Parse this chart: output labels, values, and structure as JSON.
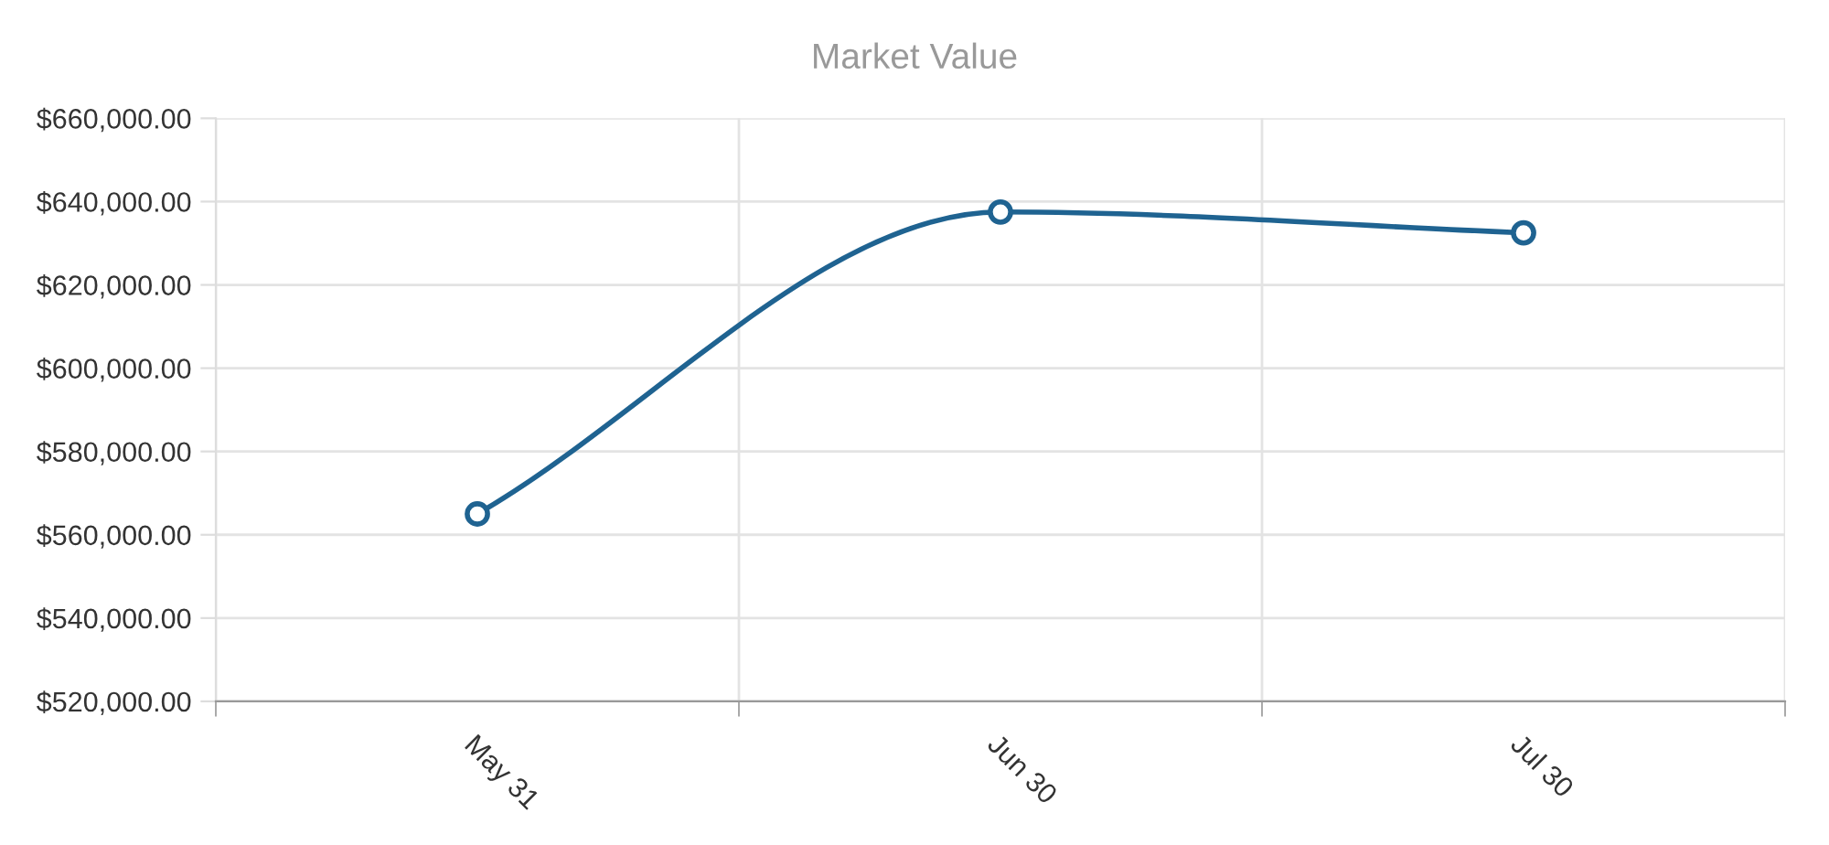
{
  "chart_data": {
    "type": "line",
    "title": "Market Value",
    "categories": [
      "May 31",
      "Jun 30",
      "Jul 30"
    ],
    "series": [
      {
        "color": "#1f6391",
        "values": [
          565000,
          637500,
          632500
        ]
      }
    ],
    "ylim": [
      520000,
      660000
    ],
    "yticks": [
      {
        "value": 520000,
        "label": "$520,000.00"
      },
      {
        "value": 540000,
        "label": "$540,000.00"
      },
      {
        "value": 560000,
        "label": "$560,000.00"
      },
      {
        "value": 580000,
        "label": "$580,000.00"
      },
      {
        "value": 600000,
        "label": "$600,000.00"
      },
      {
        "value": 620000,
        "label": "$620,000.00"
      },
      {
        "value": 640000,
        "label": "$640,000.00"
      },
      {
        "value": 660000,
        "label": "$660,000.00"
      }
    ],
    "grid": true,
    "marker": "circle",
    "line_style": "solid"
  }
}
